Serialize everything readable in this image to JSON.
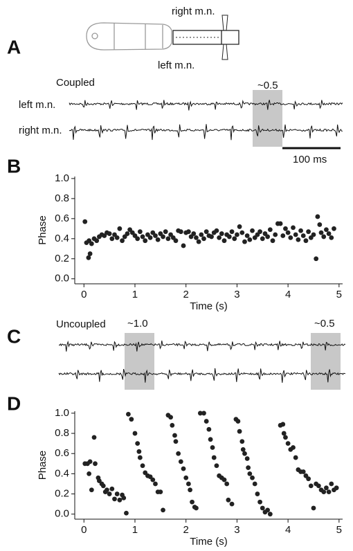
{
  "panels": {
    "a": {
      "letter": "A",
      "top_electrode": "right m.n.",
      "bottom_electrode": "left m.n.",
      "condition": "Coupled",
      "phase_note": "~0.5",
      "trace1": "left m.n.",
      "trace2": "right m.n.",
      "scale_bar": "100 ms"
    },
    "c": {
      "letter": "C",
      "condition": "Uncoupled",
      "phase_note1": "~1.0",
      "phase_note2": "~0.5"
    }
  },
  "chart_data": [
    {
      "type": "scatter",
      "panel": "B",
      "xlabel": "Time (s)",
      "ylabel": "Phase",
      "color": "#222222",
      "xlim": [
        -0.18,
        5.07
      ],
      "ylim": [
        -0.05,
        1.02
      ],
      "xticks": [
        0,
        1,
        2,
        3,
        4,
        5
      ],
      "yticks": [
        {
          "value": 0,
          "label": "0.0"
        },
        0.2,
        0.4,
        0.6,
        0.8,
        {
          "value": 1,
          "label": "1.0"
        }
      ],
      "x": [
        0.02,
        0.05,
        0.09,
        0.12,
        0.1,
        0.15,
        0.2,
        0.25,
        0.3,
        0.35,
        0.4,
        0.45,
        0.5,
        0.55,
        0.6,
        0.65,
        0.7,
        0.75,
        0.8,
        0.85,
        0.9,
        0.95,
        1.0,
        1.05,
        1.1,
        1.15,
        1.2,
        1.25,
        1.3,
        1.35,
        1.4,
        1.45,
        1.5,
        1.55,
        1.6,
        1.65,
        1.7,
        1.75,
        1.8,
        1.85,
        1.9,
        1.95,
        2.0,
        2.05,
        2.1,
        2.15,
        2.2,
        2.25,
        2.3,
        2.35,
        2.4,
        2.45,
        2.5,
        2.55,
        2.6,
        2.65,
        2.7,
        2.75,
        2.8,
        2.85,
        2.9,
        2.95,
        3.0,
        3.05,
        3.1,
        3.15,
        3.2,
        3.25,
        3.3,
        3.35,
        3.4,
        3.45,
        3.5,
        3.55,
        3.6,
        3.65,
        3.7,
        3.75,
        3.8,
        3.85,
        3.9,
        3.95,
        4.0,
        4.05,
        4.1,
        4.15,
        4.2,
        4.25,
        4.3,
        4.35,
        4.4,
        4.45,
        4.5,
        4.55,
        4.58,
        4.62,
        4.65,
        4.7,
        4.75,
        4.8,
        4.85,
        4.9
      ],
      "values": [
        0.57,
        0.36,
        0.21,
        0.25,
        0.38,
        0.35,
        0.4,
        0.38,
        0.42,
        0.44,
        0.43,
        0.46,
        0.45,
        0.4,
        0.44,
        0.41,
        0.5,
        0.38,
        0.42,
        0.45,
        0.49,
        0.46,
        0.43,
        0.4,
        0.47,
        0.42,
        0.38,
        0.44,
        0.41,
        0.46,
        0.43,
        0.39,
        0.45,
        0.42,
        0.47,
        0.4,
        0.44,
        0.41,
        0.38,
        0.48,
        0.47,
        0.33,
        0.46,
        0.47,
        0.42,
        0.45,
        0.41,
        0.37,
        0.44,
        0.4,
        0.47,
        0.43,
        0.42,
        0.46,
        0.48,
        0.41,
        0.45,
        0.38,
        0.44,
        0.42,
        0.47,
        0.4,
        0.44,
        0.52,
        0.46,
        0.37,
        0.43,
        0.39,
        0.48,
        0.41,
        0.44,
        0.47,
        0.4,
        0.45,
        0.42,
        0.49,
        0.38,
        0.44,
        0.55,
        0.55,
        0.43,
        0.5,
        0.46,
        0.41,
        0.51,
        0.44,
        0.39,
        0.48,
        0.43,
        0.38,
        0.47,
        0.41,
        0.44,
        0.2,
        0.62,
        0.54,
        0.46,
        0.42,
        0.49,
        0.45,
        0.41,
        0.5
      ]
    },
    {
      "type": "scatter",
      "panel": "D",
      "xlabel": "Time (s)",
      "ylabel": "Phase",
      "color": "#222222",
      "xlim": [
        -0.18,
        5.07
      ],
      "ylim": [
        -0.05,
        1.02
      ],
      "xticks": [
        0,
        1,
        2,
        3,
        4,
        5
      ],
      "yticks": [
        {
          "value": 0,
          "label": "0.0"
        },
        0.2,
        0.4,
        0.6,
        0.8,
        {
          "value": 1,
          "label": "1.0"
        }
      ],
      "x": [
        0.02,
        0.07,
        0.1,
        0.12,
        0.15,
        0.2,
        0.22,
        0.28,
        0.3,
        0.35,
        0.38,
        0.42,
        0.45,
        0.5,
        0.55,
        0.6,
        0.65,
        0.7,
        0.75,
        0.78,
        0.83,
        0.87,
        0.93,
        1.0,
        1.05,
        1.08,
        1.1,
        1.15,
        1.2,
        1.25,
        1.3,
        1.35,
        1.4,
        1.45,
        1.5,
        1.55,
        1.65,
        1.7,
        1.73,
        1.78,
        1.8,
        1.85,
        1.9,
        1.95,
        2.0,
        2.05,
        2.08,
        2.12,
        2.17,
        2.2,
        2.28,
        2.35,
        2.4,
        2.45,
        2.48,
        2.52,
        2.55,
        2.6,
        2.65,
        2.7,
        2.75,
        2.8,
        2.83,
        2.9,
        2.98,
        3.02,
        3.05,
        3.1,
        3.12,
        3.15,
        3.2,
        3.22,
        3.25,
        3.3,
        3.35,
        3.4,
        3.45,
        3.5,
        3.55,
        3.6,
        3.65,
        3.85,
        3.9,
        3.92,
        3.95,
        4.0,
        4.05,
        4.1,
        4.15,
        4.2,
        4.25,
        4.3,
        4.35,
        4.4,
        4.45,
        4.5,
        4.55,
        4.6,
        4.65,
        4.7,
        4.75,
        4.8,
        4.85,
        4.9,
        4.95
      ],
      "values": [
        0.5,
        0.5,
        0.4,
        0.52,
        0.24,
        0.76,
        0.5,
        0.36,
        0.33,
        0.3,
        0.28,
        0.22,
        0.24,
        0.2,
        0.25,
        0.15,
        0.2,
        0.14,
        0.19,
        0.16,
        0.01,
        0.99,
        0.94,
        0.8,
        0.7,
        0.62,
        0.56,
        0.48,
        0.41,
        0.38,
        0.37,
        0.34,
        0.3,
        0.22,
        0.22,
        0.04,
        0.98,
        0.96,
        0.88,
        0.78,
        0.72,
        0.6,
        0.52,
        0.45,
        0.36,
        0.3,
        0.24,
        0.12,
        0.07,
        0.06,
        1.0,
        1.0,
        0.92,
        0.84,
        0.74,
        0.66,
        0.56,
        0.48,
        0.38,
        0.36,
        0.34,
        0.3,
        0.14,
        0.1,
        0.94,
        0.92,
        0.82,
        0.72,
        0.64,
        0.6,
        0.55,
        0.46,
        0.4,
        0.36,
        0.3,
        0.2,
        0.12,
        0.06,
        0.02,
        0.04,
        0.0,
        0.88,
        0.89,
        0.8,
        0.76,
        0.7,
        0.64,
        0.66,
        0.56,
        0.44,
        0.42,
        0.42,
        0.38,
        0.35,
        0.28,
        0.06,
        0.3,
        0.28,
        0.24,
        0.22,
        0.26,
        0.22,
        0.3,
        0.24,
        0.26
      ]
    }
  ]
}
